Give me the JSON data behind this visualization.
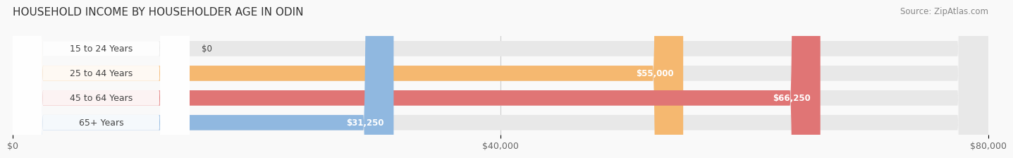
{
  "title": "HOUSEHOLD INCOME BY HOUSEHOLDER AGE IN ODIN",
  "source": "Source: ZipAtlas.com",
  "categories": [
    "15 to 24 Years",
    "25 to 44 Years",
    "45 to 64 Years",
    "65+ Years"
  ],
  "values": [
    0,
    55000,
    66250,
    31250
  ],
  "bar_colors": [
    "#f5a0b0",
    "#f5b870",
    "#e07575",
    "#90b8e0"
  ],
  "bar_bg_color": "#e8e8e8",
  "value_labels": [
    "$0",
    "$55,000",
    "$66,250",
    "$31,250"
  ],
  "x_ticks": [
    0,
    40000,
    80000
  ],
  "x_tick_labels": [
    "$0",
    "$40,000",
    "$80,000"
  ],
  "xlim": [
    0,
    80000
  ],
  "title_fontsize": 11,
  "source_fontsize": 8.5,
  "label_fontsize": 9,
  "value_fontsize": 8.5,
  "background_color": "#f9f9f9",
  "grid_color": "#cccccc",
  "text_color": "#444444",
  "source_color": "#888888"
}
